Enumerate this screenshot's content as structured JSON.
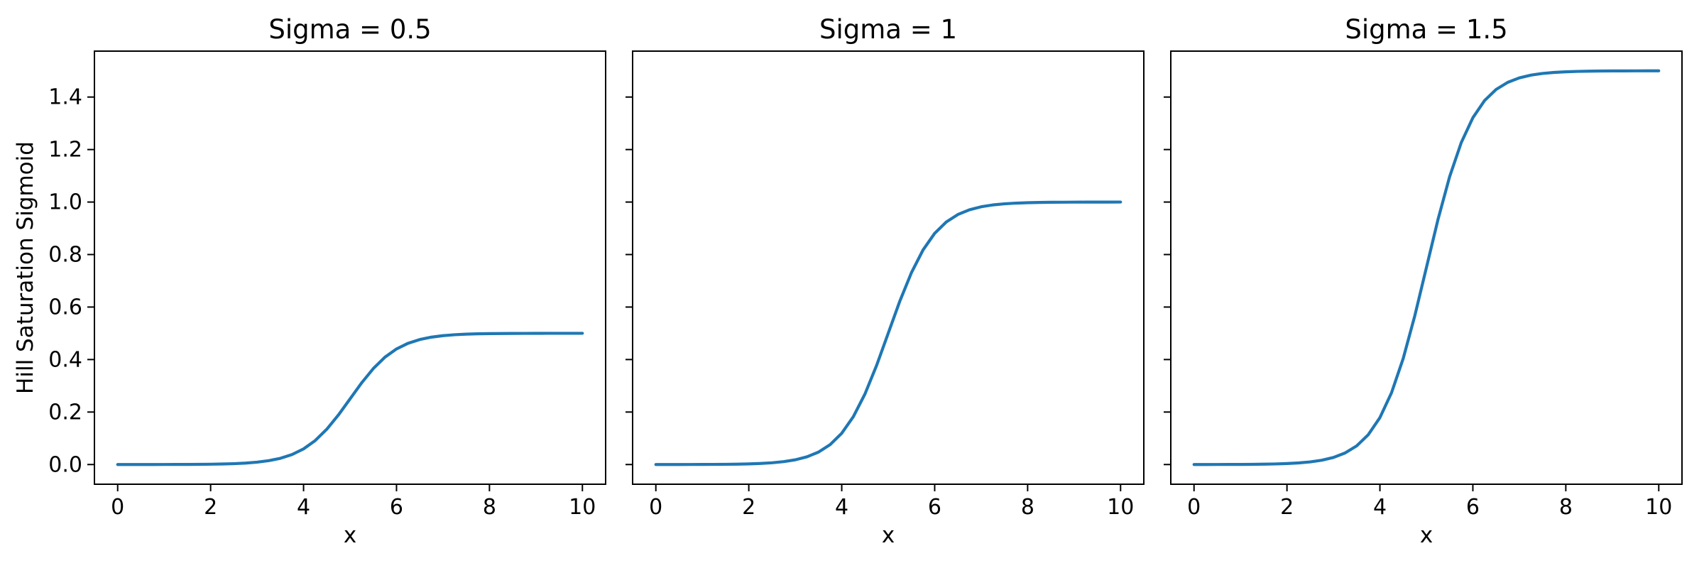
{
  "figure": {
    "background": "#ffffff",
    "text_color": "#000000",
    "axes_color": "#000000",
    "accent_line_color": "#1f77b4"
  },
  "chart_data": [
    {
      "type": "line",
      "title": "Sigma = 0.5",
      "xlabel": "x",
      "ylabel": "Hill Saturation Sigmoid",
      "xlim": [
        -0.5,
        10.5
      ],
      "ylim": [
        -0.075,
        1.575
      ],
      "xticks": [
        0,
        2,
        4,
        6,
        8,
        10
      ],
      "xtick_labels": [
        "0",
        "2",
        "4",
        "6",
        "8",
        "10"
      ],
      "yticks": [
        0.0,
        0.2,
        0.4,
        0.6,
        0.8,
        1.0,
        1.2,
        1.4
      ],
      "ytick_labels": [
        "0.0",
        "0.2",
        "0.4",
        "0.6",
        "0.8",
        "1.0",
        "1.2",
        "1.4"
      ],
      "show_ytick_labels": true,
      "grid": false,
      "legend": null,
      "series": [
        {
          "name": "sigma=0.5",
          "color": "#1f77b4",
          "x": [
            0,
            0.25,
            0.5,
            0.75,
            1,
            1.25,
            1.5,
            1.75,
            2,
            2.25,
            2.5,
            2.75,
            3,
            3.25,
            3.5,
            3.75,
            4,
            4.25,
            4.5,
            4.75,
            5,
            5.25,
            5.5,
            5.75,
            6,
            6.25,
            6.5,
            6.75,
            7,
            7.25,
            7.5,
            7.75,
            8,
            8.25,
            8.5,
            8.75,
            9,
            9.25,
            9.5,
            9.75,
            10
          ],
          "y": [
            0.0,
            0.0,
            0.0001,
            0.0001,
            0.0002,
            0.0003,
            0.0005,
            0.0008,
            0.0012,
            0.002,
            0.0033,
            0.0055,
            0.009,
            0.0147,
            0.0237,
            0.0379,
            0.0596,
            0.0912,
            0.1345,
            0.1888,
            0.25,
            0.3112,
            0.3655,
            0.4088,
            0.4404,
            0.4621,
            0.4763,
            0.4853,
            0.491,
            0.4945,
            0.4967,
            0.498,
            0.4988,
            0.4992,
            0.4995,
            0.4997,
            0.4998,
            0.4999,
            0.4999,
            0.5,
            0.5
          ]
        }
      ]
    },
    {
      "type": "line",
      "title": "Sigma = 1",
      "xlabel": "x",
      "ylabel": "",
      "xlim": [
        -0.5,
        10.5
      ],
      "ylim": [
        -0.075,
        1.575
      ],
      "xticks": [
        0,
        2,
        4,
        6,
        8,
        10
      ],
      "xtick_labels": [
        "0",
        "2",
        "4",
        "6",
        "8",
        "10"
      ],
      "yticks": [
        0.0,
        0.2,
        0.4,
        0.6,
        0.8,
        1.0,
        1.2,
        1.4
      ],
      "ytick_labels": [],
      "show_ytick_labels": false,
      "grid": false,
      "legend": null,
      "series": [
        {
          "name": "sigma=1",
          "color": "#1f77b4",
          "x": [
            0,
            0.25,
            0.5,
            0.75,
            1,
            1.25,
            1.5,
            1.75,
            2,
            2.25,
            2.5,
            2.75,
            3,
            3.25,
            3.5,
            3.75,
            4,
            4.25,
            4.5,
            4.75,
            5,
            5.25,
            5.5,
            5.75,
            6,
            6.25,
            6.5,
            6.75,
            7,
            7.25,
            7.5,
            7.75,
            8,
            8.25,
            8.5,
            8.75,
            9,
            9.25,
            9.5,
            9.75,
            10
          ],
          "y": [
            0.0,
            0.0001,
            0.0001,
            0.0002,
            0.0003,
            0.0006,
            0.0009,
            0.0015,
            0.0025,
            0.0041,
            0.0067,
            0.011,
            0.018,
            0.0293,
            0.0474,
            0.0759,
            0.1192,
            0.1824,
            0.2689,
            0.3775,
            0.5,
            0.6225,
            0.7311,
            0.8176,
            0.8808,
            0.9241,
            0.9526,
            0.9707,
            0.982,
            0.989,
            0.9933,
            0.9959,
            0.9975,
            0.9985,
            0.9991,
            0.9994,
            0.9997,
            0.9998,
            0.9999,
            0.9999,
            1.0
          ]
        }
      ]
    },
    {
      "type": "line",
      "title": "Sigma = 1.5",
      "xlabel": "x",
      "ylabel": "",
      "xlim": [
        -0.5,
        10.5
      ],
      "ylim": [
        -0.075,
        1.575
      ],
      "xticks": [
        0,
        2,
        4,
        6,
        8,
        10
      ],
      "xtick_labels": [
        "0",
        "2",
        "4",
        "6",
        "8",
        "10"
      ],
      "yticks": [
        0.0,
        0.2,
        0.4,
        0.6,
        0.8,
        1.0,
        1.2,
        1.4
      ],
      "ytick_labels": [],
      "show_ytick_labels": false,
      "grid": false,
      "legend": null,
      "series": [
        {
          "name": "sigma=1.5",
          "color": "#1f77b4",
          "x": [
            0,
            0.25,
            0.5,
            0.75,
            1,
            1.25,
            1.5,
            1.75,
            2,
            2.25,
            2.5,
            2.75,
            3,
            3.25,
            3.5,
            3.75,
            4,
            4.25,
            4.5,
            4.75,
            5,
            5.25,
            5.5,
            5.75,
            6,
            6.25,
            6.5,
            6.75,
            7,
            7.25,
            7.5,
            7.75,
            8,
            8.25,
            8.5,
            8.75,
            9,
            9.25,
            9.5,
            9.75,
            10
          ],
          "y": [
            0.0001,
            0.0001,
            0.0002,
            0.0003,
            0.0005,
            0.0008,
            0.0014,
            0.0023,
            0.0037,
            0.0061,
            0.01,
            0.0165,
            0.027,
            0.044,
            0.0711,
            0.1138,
            0.1788,
            0.2736,
            0.4034,
            0.5663,
            0.75,
            0.9337,
            1.0966,
            1.2264,
            1.3212,
            1.3862,
            1.4289,
            1.456,
            1.473,
            1.4835,
            1.49,
            1.4939,
            1.4963,
            1.4977,
            1.4986,
            1.4992,
            1.4995,
            1.4997,
            1.4998,
            1.4999,
            1.4999
          ]
        }
      ]
    }
  ]
}
